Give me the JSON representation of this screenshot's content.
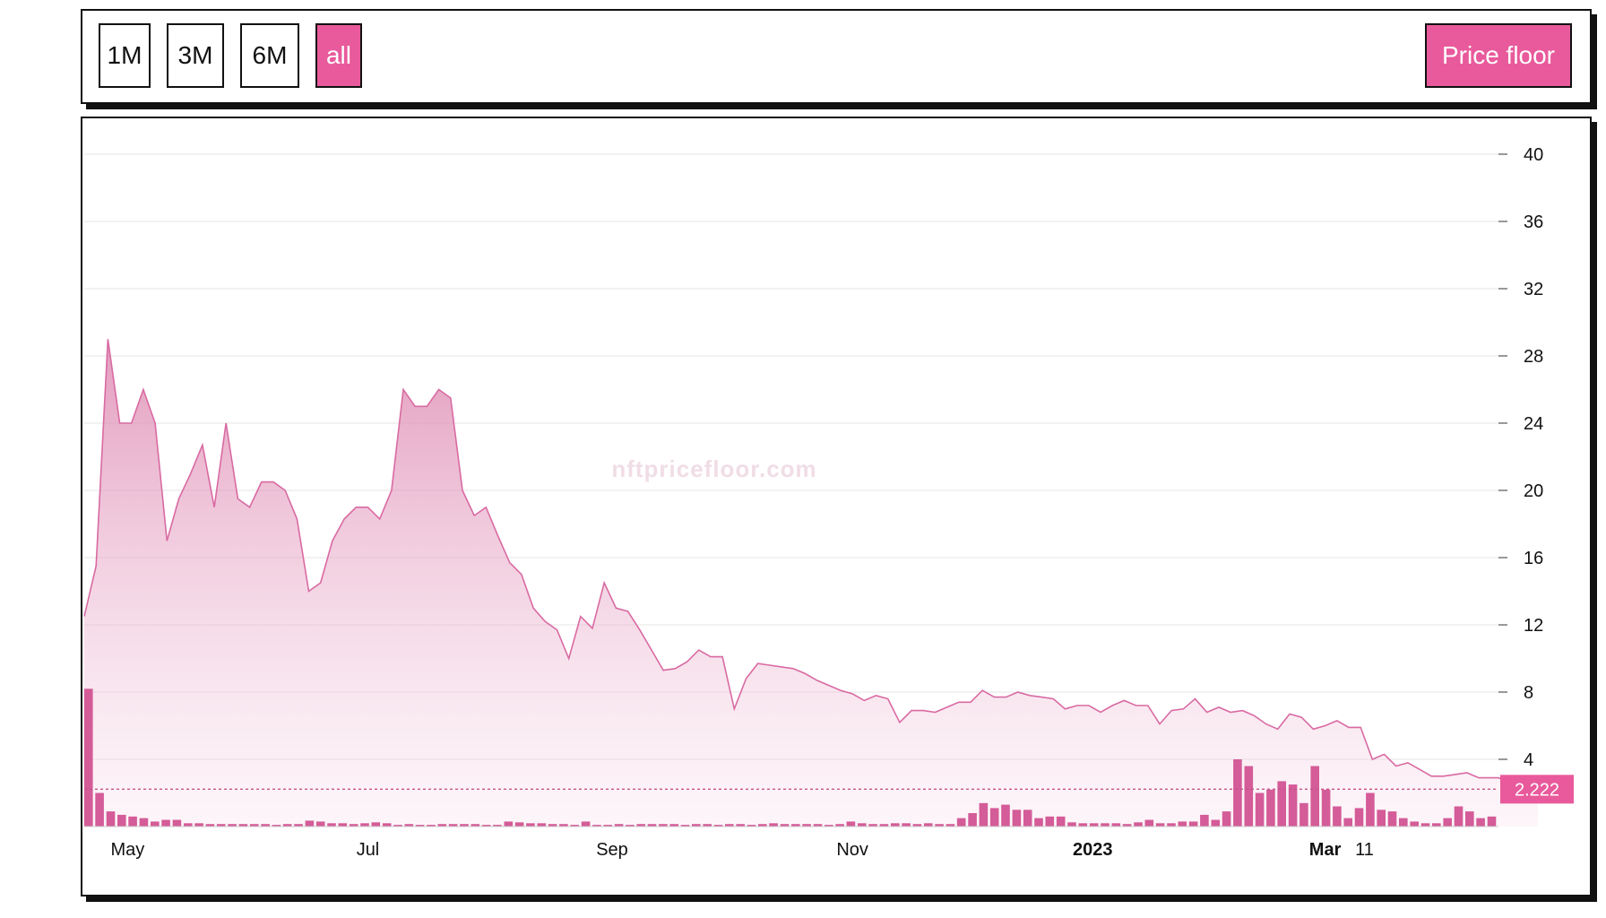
{
  "toolbar": {
    "ranges": [
      {
        "label": "1M",
        "active": false
      },
      {
        "label": "3M",
        "active": false
      },
      {
        "label": "6M",
        "active": false
      },
      {
        "label": "all",
        "active": true
      }
    ],
    "metric_button": "Price floor"
  },
  "watermark": "nftpricefloor.com",
  "colors": {
    "accent": "#e85a9b",
    "line": "#d96aa2",
    "grid": "#e6e6e6"
  },
  "chart_data": {
    "type": "area",
    "ylim": [
      0,
      40
    ],
    "y_ticks": [
      4,
      8,
      12,
      16,
      20,
      24,
      28,
      32,
      36,
      40
    ],
    "x_ticks": [
      {
        "label": "May",
        "date": "2022-05-01",
        "bold": false
      },
      {
        "label": "Jul",
        "date": "2022-07-01",
        "bold": false
      },
      {
        "label": "Sep",
        "date": "2022-09-01",
        "bold": false
      },
      {
        "label": "Nov",
        "date": "2022-11-01",
        "bold": false
      },
      {
        "label": "2023",
        "date": "2023-01-01",
        "bold": true
      },
      {
        "label": "Mar",
        "date": "2023-03-01",
        "bold": true
      },
      {
        "label": "11",
        "date": "2023-03-11",
        "bold": false
      }
    ],
    "x_start": "2022-04-20",
    "x_end": "2023-04-14",
    "current_value_label": "2.222",
    "current_value": 2.222,
    "price_series": [
      [
        "2022-04-20",
        12.5
      ],
      [
        "2022-04-23",
        15.5
      ],
      [
        "2022-04-26",
        29
      ],
      [
        "2022-04-29",
        24
      ],
      [
        "2022-05-02",
        24
      ],
      [
        "2022-05-05",
        26
      ],
      [
        "2022-05-08",
        24
      ],
      [
        "2022-05-11",
        17
      ],
      [
        "2022-05-14",
        19.5
      ],
      [
        "2022-05-17",
        21
      ],
      [
        "2022-05-20",
        22.7
      ],
      [
        "2022-05-23",
        19
      ],
      [
        "2022-05-26",
        24
      ],
      [
        "2022-05-29",
        19.5
      ],
      [
        "2022-06-01",
        19
      ],
      [
        "2022-06-04",
        20.5
      ],
      [
        "2022-06-07",
        20.5
      ],
      [
        "2022-06-10",
        20
      ],
      [
        "2022-06-13",
        18.3
      ],
      [
        "2022-06-16",
        14
      ],
      [
        "2022-06-19",
        14.5
      ],
      [
        "2022-06-22",
        17
      ],
      [
        "2022-06-25",
        18.3
      ],
      [
        "2022-06-28",
        19
      ],
      [
        "2022-07-01",
        19
      ],
      [
        "2022-07-04",
        18.3
      ],
      [
        "2022-07-07",
        20
      ],
      [
        "2022-07-10",
        26
      ],
      [
        "2022-07-13",
        25
      ],
      [
        "2022-07-16",
        25
      ],
      [
        "2022-07-19",
        26
      ],
      [
        "2022-07-22",
        25.5
      ],
      [
        "2022-07-25",
        20
      ],
      [
        "2022-07-28",
        18.5
      ],
      [
        "2022-07-31",
        19
      ],
      [
        "2022-08-03",
        17.3
      ],
      [
        "2022-08-06",
        15.7
      ],
      [
        "2022-08-09",
        15
      ],
      [
        "2022-08-12",
        13
      ],
      [
        "2022-08-15",
        12.2
      ],
      [
        "2022-08-18",
        11.7
      ],
      [
        "2022-08-21",
        10
      ],
      [
        "2022-08-24",
        12.5
      ],
      [
        "2022-08-27",
        11.8
      ],
      [
        "2022-08-30",
        14.5
      ],
      [
        "2022-09-02",
        13
      ],
      [
        "2022-09-05",
        12.8
      ],
      [
        "2022-09-08",
        11.7
      ],
      [
        "2022-09-11",
        10.5
      ],
      [
        "2022-09-14",
        9.3
      ],
      [
        "2022-09-17",
        9.4
      ],
      [
        "2022-09-20",
        9.8
      ],
      [
        "2022-09-23",
        10.5
      ],
      [
        "2022-09-26",
        10.1
      ],
      [
        "2022-09-29",
        10.1
      ],
      [
        "2022-10-02",
        7
      ],
      [
        "2022-10-05",
        8.8
      ],
      [
        "2022-10-08",
        9.7
      ],
      [
        "2022-10-11",
        9.6
      ],
      [
        "2022-10-14",
        9.5
      ],
      [
        "2022-10-17",
        9.4
      ],
      [
        "2022-10-20",
        9.1
      ],
      [
        "2022-10-23",
        8.7
      ],
      [
        "2022-10-26",
        8.4
      ],
      [
        "2022-10-29",
        8.1
      ],
      [
        "2022-11-01",
        7.9
      ],
      [
        "2022-11-04",
        7.5
      ],
      [
        "2022-11-07",
        7.8
      ],
      [
        "2022-11-10",
        7.6
      ],
      [
        "2022-11-13",
        6.2
      ],
      [
        "2022-11-16",
        6.9
      ],
      [
        "2022-11-19",
        6.9
      ],
      [
        "2022-11-22",
        6.8
      ],
      [
        "2022-11-25",
        7.1
      ],
      [
        "2022-11-28",
        7.4
      ],
      [
        "2022-12-01",
        7.4
      ],
      [
        "2022-12-04",
        8.1
      ],
      [
        "2022-12-07",
        7.7
      ],
      [
        "2022-12-10",
        7.7
      ],
      [
        "2022-12-13",
        8
      ],
      [
        "2022-12-16",
        7.8
      ],
      [
        "2022-12-19",
        7.7
      ],
      [
        "2022-12-22",
        7.6
      ],
      [
        "2022-12-25",
        7
      ],
      [
        "2022-12-28",
        7.2
      ],
      [
        "2022-12-31",
        7.2
      ],
      [
        "2023-01-03",
        6.8
      ],
      [
        "2023-01-06",
        7.2
      ],
      [
        "2023-01-09",
        7.5
      ],
      [
        "2023-01-12",
        7.2
      ],
      [
        "2023-01-15",
        7.2
      ],
      [
        "2023-01-18",
        6.1
      ],
      [
        "2023-01-21",
        6.9
      ],
      [
        "2023-01-24",
        7
      ],
      [
        "2023-01-27",
        7.6
      ],
      [
        "2023-01-30",
        6.8
      ],
      [
        "2023-02-02",
        7.1
      ],
      [
        "2023-02-05",
        6.8
      ],
      [
        "2023-02-08",
        6.9
      ],
      [
        "2023-02-11",
        6.6
      ],
      [
        "2023-02-14",
        6.1
      ],
      [
        "2023-02-17",
        5.8
      ],
      [
        "2023-02-20",
        6.7
      ],
      [
        "2023-02-23",
        6.5
      ],
      [
        "2023-02-26",
        5.8
      ],
      [
        "2023-03-01",
        6
      ],
      [
        "2023-03-04",
        6.3
      ],
      [
        "2023-03-07",
        5.9
      ],
      [
        "2023-03-10",
        5.9
      ],
      [
        "2023-03-13",
        4
      ],
      [
        "2023-03-16",
        4.3
      ],
      [
        "2023-03-19",
        3.6
      ],
      [
        "2023-03-22",
        3.8
      ],
      [
        "2023-03-25",
        3.4
      ],
      [
        "2023-03-28",
        3
      ],
      [
        "2023-03-31",
        3
      ],
      [
        "2023-04-03",
        3.1
      ],
      [
        "2023-04-06",
        3.2
      ],
      [
        "2023-04-09",
        2.9
      ],
      [
        "2023-04-12",
        2.9
      ],
      [
        "2023-04-14",
        2.9
      ],
      [
        "2023-04-16",
        2.7
      ],
      [
        "2023-04-18",
        2.4
      ],
      [
        "2023-04-20",
        2.25
      ],
      [
        "2023-04-22",
        2.28
      ],
      [
        "2023-04-24",
        2.222
      ]
    ],
    "volume_bars": [
      8.2,
      2,
      0.9,
      0.7,
      0.6,
      0.5,
      0.3,
      0.4,
      0.4,
      0.2,
      0.2,
      0.15,
      0.15,
      0.15,
      0.15,
      0.15,
      0.15,
      0.1,
      0.15,
      0.15,
      0.35,
      0.3,
      0.2,
      0.2,
      0.15,
      0.2,
      0.25,
      0.2,
      0.1,
      0.15,
      0.1,
      0.1,
      0.15,
      0.15,
      0.15,
      0.15,
      0.1,
      0.1,
      0.3,
      0.25,
      0.2,
      0.2,
      0.15,
      0.15,
      0.1,
      0.3,
      0.1,
      0.1,
      0.15,
      0.1,
      0.15,
      0.15,
      0.15,
      0.15,
      0.1,
      0.15,
      0.15,
      0.1,
      0.15,
      0.15,
      0.1,
      0.15,
      0.2,
      0.15,
      0.15,
      0.15,
      0.15,
      0.1,
      0.15,
      0.3,
      0.2,
      0.15,
      0.15,
      0.2,
      0.2,
      0.15,
      0.2,
      0.15,
      0.15,
      0.5,
      0.8,
      1.4,
      1.1,
      1.3,
      1,
      1,
      0.5,
      0.6,
      0.6,
      0.25,
      0.2,
      0.2,
      0.2,
      0.2,
      0.15,
      0.25,
      0.4,
      0.2,
      0.2,
      0.3,
      0.3,
      0.7,
      0.4,
      0.9,
      4,
      3.6,
      2,
      2.2,
      2.7,
      2.5,
      1.4,
      3.6,
      2.2,
      1.2,
      0.5,
      1.1,
      2,
      1,
      0.9,
      0.5,
      0.3,
      0.2,
      0.2,
      0.5,
      1.2,
      0.9,
      0.5,
      0.6
    ]
  }
}
